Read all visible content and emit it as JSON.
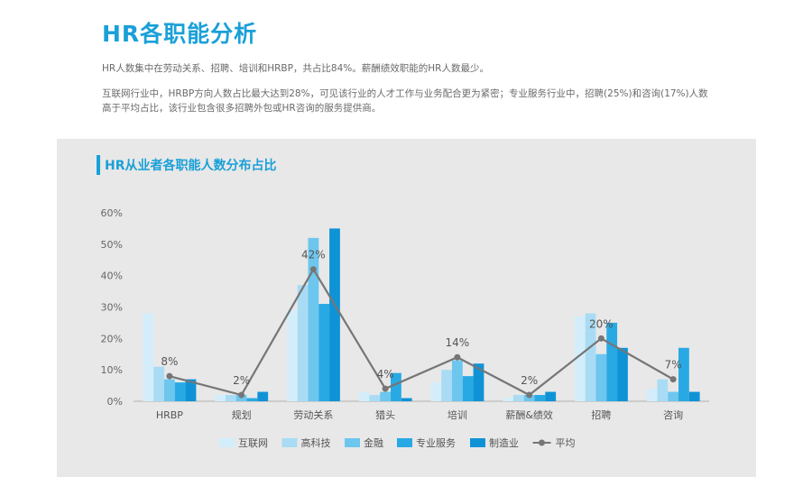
{
  "header": {
    "title": "HR各职能分析",
    "paragraph1": "HR人数集中在劳动关系、招聘、培训和HRBP，共占比84%。薪酬绩效职能的HR人数最少。",
    "paragraph2": "互联网行业中，HRBP方向人数占比最大达到28%，可见该行业的人才工作与业务配合更为紧密；专业服务行业中，招聘(25%)和咨询(17%)人数高于平均占比，该行业包含很多招聘外包或HR咨询的服务提供商。"
  },
  "chart_data": {
    "type": "bar",
    "title": "HR从业者各职能人数分布占比",
    "categories": [
      "HRBP",
      "规划",
      "劳动关系",
      "猎头",
      "培训",
      "薪酬&绩效",
      "招聘",
      "咨询"
    ],
    "ylim": [
      0,
      60
    ],
    "yticks": [
      "0%",
      "10%",
      "20%",
      "30%",
      "40%",
      "50%",
      "60%"
    ],
    "grid": false,
    "legend_position": "bottom",
    "series": [
      {
        "name": "互联网",
        "color": "#d3eefa",
        "values": [
          28,
          2,
          29,
          3,
          6,
          1,
          27,
          4
        ]
      },
      {
        "name": "高科技",
        "color": "#a9dcf4",
        "values": [
          11,
          2,
          37,
          2,
          10,
          2,
          28,
          7
        ]
      },
      {
        "name": "金融",
        "color": "#6cc6ee",
        "values": [
          7,
          2,
          52,
          3,
          13,
          2,
          15,
          3
        ]
      },
      {
        "name": "专业服务",
        "color": "#29a9e3",
        "values": [
          6,
          1,
          31,
          9,
          8,
          2,
          25,
          17
        ]
      },
      {
        "name": "制造业",
        "color": "#0f93d6",
        "values": [
          7,
          3,
          55,
          1,
          12,
          3,
          17,
          3
        ]
      }
    ],
    "line": {
      "name": "平均",
      "color": "#767676",
      "values": [
        8,
        2,
        42,
        4,
        14,
        2,
        20,
        7
      ]
    },
    "line_labels": [
      "8%",
      "2%",
      "42%",
      "4%",
      "14%",
      "2%",
      "20%",
      "7%"
    ]
  }
}
